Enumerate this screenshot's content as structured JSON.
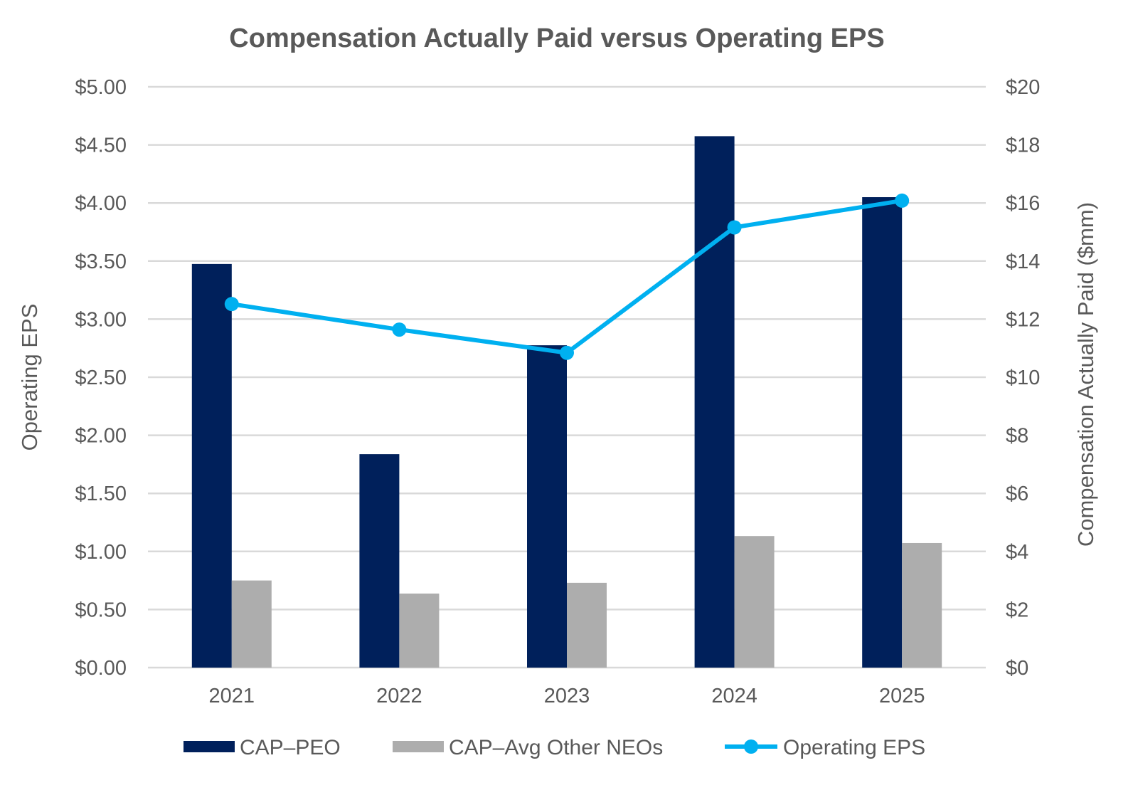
{
  "chart_data": {
    "type": "bar+line",
    "title": "Compensation Actually Paid versus Operating EPS",
    "categories": [
      "2021",
      "2022",
      "2023",
      "2024",
      "2025"
    ],
    "y_left": {
      "label": "Operating EPS",
      "lim": [
        0,
        5
      ],
      "ticks": [
        "$0.00",
        "$0.50",
        "$1.00",
        "$1.50",
        "$2.00",
        "$2.50",
        "$3.00",
        "$3.50",
        "$4.00",
        "$4.50",
        "$5.00"
      ]
    },
    "y_right": {
      "label": "Compensation Actually Paid ($mm)",
      "lim": [
        0,
        20
      ],
      "ticks": [
        "$0",
        "$2",
        "$4",
        "$6",
        "$8",
        "$10",
        "$12",
        "$14",
        "$16",
        "$18",
        "$20"
      ]
    },
    "grid": true,
    "legend_position": "bottom",
    "series": [
      {
        "name": "CAP–PEO",
        "type": "bar",
        "axis": "right",
        "color": "#00205B",
        "values": [
          13.9,
          7.35,
          11.1,
          18.3,
          16.2
        ]
      },
      {
        "name": "CAP–Avg Other NEOs",
        "type": "bar",
        "axis": "right",
        "color": "#ADADAD",
        "values": [
          3.0,
          2.55,
          2.92,
          4.53,
          4.29
        ]
      },
      {
        "name": "Operating EPS",
        "type": "line",
        "axis": "left",
        "color": "#00B0F0",
        "values": [
          3.13,
          2.91,
          2.71,
          3.79,
          4.02
        ]
      }
    ]
  }
}
